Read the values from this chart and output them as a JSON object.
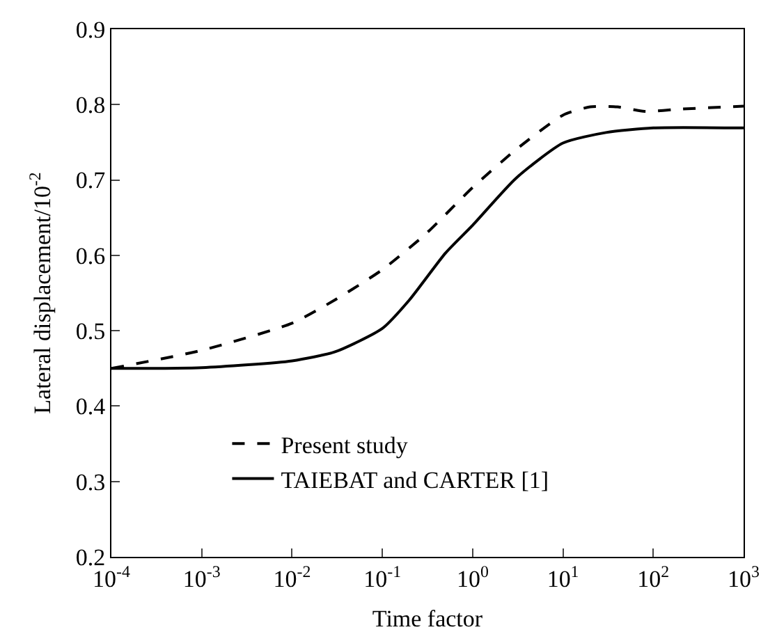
{
  "chart_data": {
    "type": "line",
    "xlabel": "Time factor",
    "ylabel": "Lateral displacement/10$^{-2}$",
    "log": "x",
    "xlim": [
      0.0001,
      1000
    ],
    "ylim": [
      0.2,
      0.9
    ],
    "xticks": [
      {
        "value": 0.0001,
        "label": "10$^{-4}$"
      },
      {
        "value": 0.001,
        "label": "10$^{-3}$"
      },
      {
        "value": 0.01,
        "label": "10$^{-2}$"
      },
      {
        "value": 0.1,
        "label": "10$^{-1}$"
      },
      {
        "value": 1,
        "label": "10$^{0}$"
      },
      {
        "value": 10,
        "label": "10$^{1}$"
      },
      {
        "value": 100,
        "label": "10$^{2}$"
      },
      {
        "value": 1000,
        "label": "10$^{3}$"
      }
    ],
    "yticks": [
      0.2,
      0.3,
      0.4,
      0.5,
      0.6,
      0.7,
      0.8,
      0.9
    ],
    "grid": false,
    "legend": "bottom left",
    "marker": "none",
    "series": [
      {
        "name": "Present study",
        "color": "#000000",
        "line_style": "dashed",
        "x": [
          0.0001,
          0.001,
          0.01,
          0.03,
          0.1,
          0.3,
          1,
          3,
          10,
          20,
          40,
          80,
          200,
          1000
        ],
        "values": [
          0.45,
          0.474,
          0.51,
          0.541,
          0.581,
          0.628,
          0.69,
          0.74,
          0.786,
          0.797,
          0.797,
          0.791,
          0.794,
          0.798
        ]
      },
      {
        "name": "TAIEBAT and CARTER [1]",
        "color": "#000000",
        "line_style": "solid",
        "x": [
          0.0001,
          0.001,
          0.01,
          0.03,
          0.1,
          0.2,
          0.5,
          1,
          3,
          10,
          30,
          100,
          1000
        ],
        "values": [
          0.45,
          0.451,
          0.46,
          0.472,
          0.503,
          0.541,
          0.603,
          0.64,
          0.702,
          0.749,
          0.763,
          0.769,
          0.769
        ]
      }
    ]
  }
}
